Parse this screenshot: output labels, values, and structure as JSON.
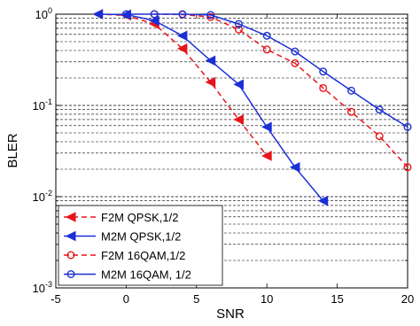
{
  "chart_data": {
    "type": "line",
    "title": "",
    "xlabel": "SNR",
    "ylabel": "BLER",
    "xlim": [
      -5,
      20
    ],
    "ylim": [
      0.001,
      1
    ],
    "yscale": "log",
    "grid": "y-major-minor-dashed",
    "legend_position": "bottom-left",
    "x_ticks": [
      "-5",
      "0",
      "5",
      "10",
      "15",
      "20"
    ],
    "y_ticks": [
      {
        "base": "10",
        "exp": "0"
      },
      {
        "base": "10",
        "exp": "-1"
      },
      {
        "base": "10",
        "exp": "-2"
      },
      {
        "base": "10",
        "exp": "-3"
      }
    ],
    "series": [
      {
        "name": "F2M QPSK,1/2",
        "color": "#e8141b",
        "dash": "dashed",
        "marker": "triangle-left",
        "x": [
          -2,
          0,
          2,
          4,
          6,
          8,
          10
        ],
        "y": [
          1.0,
          0.97,
          0.78,
          0.42,
          0.18,
          0.07,
          0.028
        ]
      },
      {
        "name": "M2M QPSK,1/2",
        "color": "#1a2fd6",
        "dash": "solid",
        "marker": "triangle-left",
        "x": [
          -2,
          0,
          2,
          4,
          6,
          8,
          10,
          12,
          14
        ],
        "y": [
          1.0,
          0.99,
          0.85,
          0.58,
          0.31,
          0.17,
          0.058,
          0.021,
          0.009
        ]
      },
      {
        "name": "F2M 16QAM,1/2",
        "color": "#e8141b",
        "dash": "dashed",
        "marker": "circle",
        "x": [
          2,
          4,
          6,
          8,
          10,
          12,
          14,
          16,
          18,
          20
        ],
        "y": [
          1.0,
          0.99,
          0.93,
          0.68,
          0.41,
          0.29,
          0.155,
          0.085,
          0.046,
          0.021
        ]
      },
      {
        "name": "M2M 16QAM, 1/2",
        "color": "#1a2fd6",
        "dash": "solid",
        "marker": "circle",
        "x": [
          0,
          2,
          4,
          6,
          8,
          10,
          12,
          14,
          16,
          18,
          20
        ],
        "y": [
          1.0,
          1.0,
          1.0,
          0.98,
          0.78,
          0.58,
          0.39,
          0.235,
          0.145,
          0.09,
          0.058
        ]
      }
    ]
  }
}
